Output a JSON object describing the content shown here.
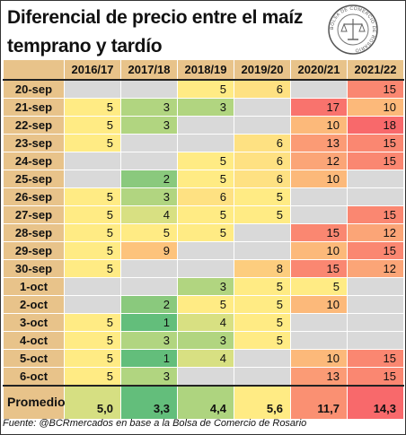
{
  "title": "Diferencial de precio entre el maíz temprano y tardío",
  "seal": {
    "text": "BOLSA DE COMERCIO DE ROSARIO"
  },
  "footer": "Fuente: @BCRmercados en base a la Bolsa de Comercio de Rosario",
  "colors": {
    "header_bg": "#e8c38a",
    "empty": "#d9d9d9",
    "scale_low": "#63be7b",
    "scale_mid": "#ffeb84",
    "scale_high": "#f8696b"
  },
  "chart_data": {
    "type": "table",
    "columns": [
      "2016/17",
      "2017/18",
      "2018/19",
      "2019/20",
      "2020/21",
      "2021/22"
    ],
    "rows": [
      {
        "label": "20-sep",
        "values": [
          null,
          null,
          "5",
          "6",
          null,
          "15"
        ]
      },
      {
        "label": "21-sep",
        "values": [
          "5",
          "3",
          "3",
          null,
          "17",
          "10"
        ]
      },
      {
        "label": "22-sep",
        "values": [
          "5",
          "3",
          null,
          null,
          "10",
          "18"
        ]
      },
      {
        "label": "23-sep",
        "values": [
          "5",
          null,
          null,
          "6",
          "13",
          "15"
        ]
      },
      {
        "label": "24-sep",
        "values": [
          null,
          null,
          "5",
          "6",
          "12",
          "15"
        ]
      },
      {
        "label": "25-sep",
        "values": [
          null,
          "2",
          "5",
          "6",
          "10",
          null
        ]
      },
      {
        "label": "26-sep",
        "values": [
          "5",
          "3",
          "6",
          "5",
          null,
          null
        ]
      },
      {
        "label": "27-sep",
        "values": [
          "5",
          "4",
          "5",
          "5",
          null,
          "15"
        ]
      },
      {
        "label": "28-sep",
        "values": [
          "5",
          "5",
          "5",
          null,
          "15",
          "12"
        ]
      },
      {
        "label": "29-sep",
        "values": [
          "5",
          "9",
          null,
          null,
          "10",
          "15"
        ]
      },
      {
        "label": "30-sep",
        "values": [
          "5",
          null,
          null,
          "8",
          "15",
          "12"
        ]
      },
      {
        "label": "1-oct",
        "values": [
          null,
          null,
          "3",
          "5",
          "5",
          null
        ]
      },
      {
        "label": "2-oct",
        "values": [
          null,
          "2",
          "5",
          "5",
          "10",
          null
        ]
      },
      {
        "label": "3-oct",
        "values": [
          "5",
          "1",
          "4",
          "5",
          null,
          null
        ]
      },
      {
        "label": "4-oct",
        "values": [
          "5",
          "3",
          "3",
          "5",
          null,
          null
        ]
      },
      {
        "label": "5-oct",
        "values": [
          "5",
          "1",
          "4",
          null,
          "10",
          "15"
        ]
      },
      {
        "label": "6-oct",
        "values": [
          "5",
          "3",
          null,
          null,
          "13",
          "15"
        ]
      }
    ],
    "total": {
      "label": "Promedio",
      "values": [
        "5,0",
        "3,3",
        "4,4",
        "5,6",
        "11,7",
        "14,3"
      ]
    },
    "color_scale": {
      "min": 1,
      "mid": 5,
      "max": 18
    },
    "total_color_scale": {
      "min": 3.3,
      "mid": 5.6,
      "max": 14.3
    }
  }
}
